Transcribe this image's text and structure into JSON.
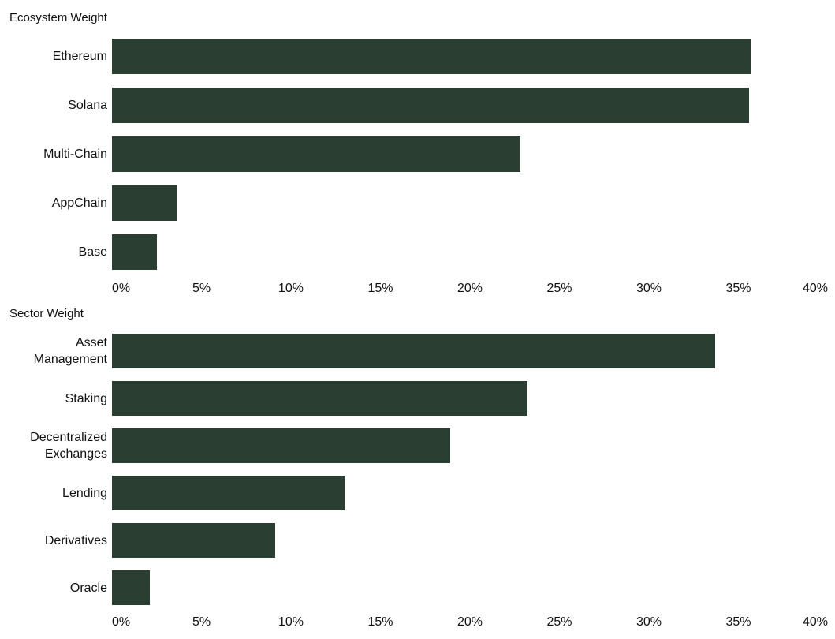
{
  "chart_data": [
    {
      "type": "bar",
      "orientation": "horizontal",
      "title": "Ecosystem Weight",
      "categories": [
        "Ethereum",
        "Solana",
        "Multi-Chain",
        "AppChain",
        "Base"
      ],
      "values": [
        35.7,
        35.6,
        22.8,
        3.6,
        2.5
      ],
      "color": "#2a3f32",
      "xlim": [
        0,
        40
      ],
      "xticks": [
        {
          "value": 0,
          "label": "0%"
        },
        {
          "value": 5,
          "label": "5%"
        },
        {
          "value": 10,
          "label": "10%"
        },
        {
          "value": 15,
          "label": "15%"
        },
        {
          "value": 20,
          "label": "20%"
        },
        {
          "value": 25,
          "label": "25%"
        },
        {
          "value": 30,
          "label": "30%"
        },
        {
          "value": 35,
          "label": "35%"
        },
        {
          "value": 40,
          "label": "40%"
        }
      ]
    },
    {
      "type": "bar",
      "orientation": "horizontal",
      "title": "Sector Weight",
      "categories": [
        "Asset Management",
        "Staking",
        "Decentralized Exchanges",
        "Lending",
        "Derivatives",
        "Oracle"
      ],
      "values": [
        33.7,
        23.2,
        18.9,
        13.0,
        9.1,
        2.1
      ],
      "color": "#2a3f32",
      "xlim": [
        0,
        40
      ],
      "xticks": [
        {
          "value": 0,
          "label": "0%"
        },
        {
          "value": 5,
          "label": "5%"
        },
        {
          "value": 10,
          "label": "10%"
        },
        {
          "value": 15,
          "label": "15%"
        },
        {
          "value": 20,
          "label": "20%"
        },
        {
          "value": 25,
          "label": "25%"
        },
        {
          "value": 30,
          "label": "30%"
        },
        {
          "value": 35,
          "label": "35%"
        },
        {
          "value": 40,
          "label": "40%"
        }
      ]
    }
  ]
}
